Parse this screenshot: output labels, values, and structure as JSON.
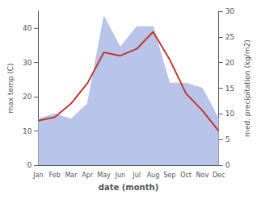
{
  "chart_data": {
    "type": "line",
    "xlabel": "date (month)",
    "ylabel": "max temp (C)",
    "y2label": "med. precipitation (kg/m2)",
    "categories": [
      "Jan",
      "Feb",
      "Mar",
      "Apr",
      "May",
      "Jun",
      "Jul",
      "Aug",
      "Sep",
      "Oct",
      "Nov",
      "Dec"
    ],
    "series": [
      {
        "type": "area",
        "color": "#b8c4ea",
        "axis": "y2",
        "values": [
          9,
          10,
          9,
          12,
          29,
          23,
          27,
          27,
          16,
          16,
          15,
          9
        ]
      },
      {
        "type": "line",
        "color": "#c0392b",
        "values": [
          13,
          14,
          18,
          24,
          33,
          32,
          34,
          39,
          31,
          21,
          16,
          10
        ]
      }
    ],
    "ylim": [
      0,
      45
    ],
    "yticks": [
      0,
      10,
      20,
      30,
      40
    ],
    "y2lim": [
      0,
      30
    ],
    "y2ticks": [
      0,
      5,
      10,
      15,
      20,
      25,
      30
    ],
    "grid": false
  }
}
